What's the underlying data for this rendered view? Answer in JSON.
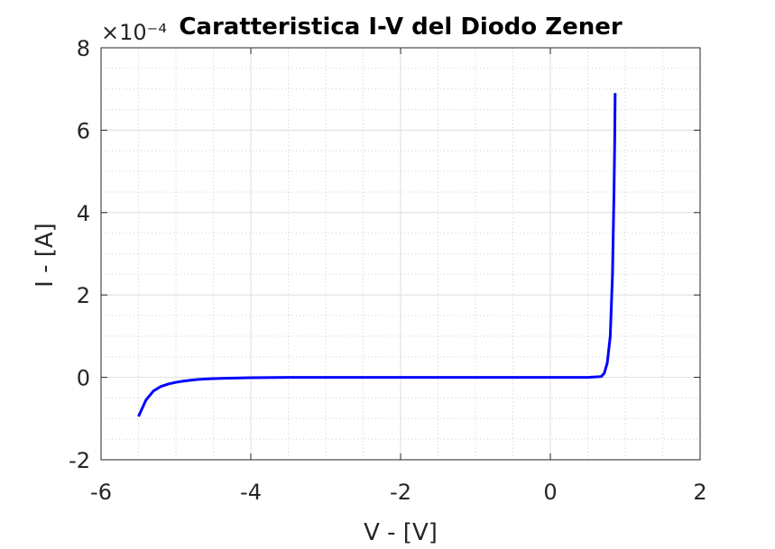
{
  "chart_data": {
    "type": "line",
    "title": "Caratteristica I-V del Diodo Zener",
    "xlabel": "V - [V]",
    "ylabel": "I - [A]",
    "xlim": [
      -6,
      2
    ],
    "ylim": [
      -2,
      8
    ],
    "y_scale_multiplier": "×10⁻⁴",
    "x_ticks": [
      "-6",
      "-4",
      "-2",
      "0",
      "2"
    ],
    "y_ticks": [
      "-2",
      "0",
      "2",
      "4",
      "6",
      "8"
    ],
    "grid": true,
    "minor_grid": true,
    "series": [
      {
        "color": "#0000ff",
        "x": [
          -5.5,
          -5.4,
          -5.3,
          -5.2,
          -5.1,
          -5.0,
          -4.9,
          -4.8,
          -4.7,
          -4.6,
          -4.5,
          -4.3,
          -4.0,
          -3.5,
          -3.0,
          -2.0,
          -1.0,
          0.0,
          0.5,
          0.68,
          0.72,
          0.76,
          0.8,
          0.83,
          0.85,
          0.86,
          0.865
        ],
        "y": [
          -0.95,
          -0.55,
          -0.33,
          -0.22,
          -0.16,
          -0.12,
          -0.09,
          -0.07,
          -0.05,
          -0.04,
          -0.03,
          -0.02,
          -0.01,
          0.0,
          0.0,
          0.0,
          0.0,
          0.0,
          0.0,
          0.02,
          0.1,
          0.35,
          1.0,
          2.5,
          4.5,
          5.8,
          6.9
        ]
      }
    ]
  }
}
